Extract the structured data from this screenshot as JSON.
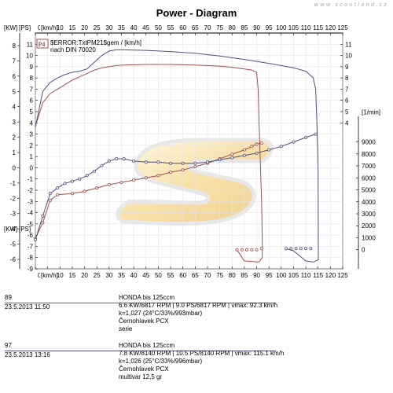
{
  "title": "Power - Diagram",
  "watermark": "www.scootland.cz",
  "logo_text": "S",
  "chart_data": {
    "type": "line",
    "xlabel": "[km/h]",
    "y_left_outer_label": "[KW]",
    "y_left_inner_label": "[PS]",
    "y_right_label": "[1/min]",
    "xlim": [
      0,
      125
    ],
    "x_ticks": [
      0,
      5,
      10,
      15,
      20,
      25,
      30,
      35,
      40,
      45,
      50,
      55,
      60,
      65,
      70,
      75,
      80,
      85,
      90,
      95,
      100,
      105,
      110,
      115,
      120,
      125
    ],
    "kw_ticks": [
      8,
      7,
      6,
      5,
      4,
      3,
      2,
      1,
      0,
      -1,
      -2,
      -3,
      -4,
      -5,
      -6
    ],
    "ps_ticks": [
      11,
      10,
      9,
      8,
      7,
      6,
      5,
      4,
      3,
      2,
      1,
      0,
      -1,
      -2,
      -3,
      -4,
      -5,
      -6,
      -7,
      -8,
      -9
    ],
    "right_ps_ticks": [
      11,
      10,
      9,
      8,
      7,
      6,
      5,
      4
    ],
    "rpm_ticks": [
      9000,
      8000,
      7000,
      6000,
      5000,
      4000,
      3000,
      2000,
      1000,
      0
    ],
    "ylim_ps": [
      -9,
      12
    ],
    "rpm_range": [
      0,
      9570
    ],
    "legend_p4": "P4",
    "legend_line1": "$ERROR:TxtPM21$gem / [km/h]",
    "legend_line2": "nach DIN 70020",
    "series": [
      {
        "name": "89",
        "color": "#a0504e",
        "kind": "power",
        "points": [
          [
            0,
            3.7
          ],
          [
            3,
            5.8
          ],
          [
            6,
            6.6
          ],
          [
            9,
            7.0
          ],
          [
            12,
            7.4
          ],
          [
            15,
            7.8
          ],
          [
            18,
            8.1
          ],
          [
            21,
            8.4
          ],
          [
            24,
            8.7
          ],
          [
            27,
            8.9
          ],
          [
            30,
            9.0
          ],
          [
            33,
            9.1
          ],
          [
            36,
            9.15
          ],
          [
            45,
            9.2
          ],
          [
            55,
            9.2
          ],
          [
            65,
            9.15
          ],
          [
            75,
            9.05
          ],
          [
            80,
            8.95
          ],
          [
            85,
            8.8
          ],
          [
            88,
            8.7
          ],
          [
            90,
            8.5
          ],
          [
            90.6,
            7.0
          ],
          [
            91,
            4.0
          ],
          [
            91.5,
            0.5
          ],
          [
            92,
            -3.0
          ],
          [
            92.3,
            -6.5
          ],
          [
            92.3,
            -8.0
          ],
          [
            91,
            -8.4
          ],
          [
            85,
            -8.3
          ],
          [
            82,
            -7.3
          ]
        ]
      },
      {
        "name": "97",
        "color": "#50507e",
        "kind": "power",
        "points": [
          [
            0,
            3.6
          ],
          [
            3,
            6.8
          ],
          [
            6,
            7.6
          ],
          [
            9,
            8.0
          ],
          [
            12,
            8.3
          ],
          [
            15,
            8.5
          ],
          [
            18,
            8.6
          ],
          [
            21,
            8.8
          ],
          [
            24,
            9.4
          ],
          [
            27,
            10.0
          ],
          [
            30,
            10.4
          ],
          [
            33,
            10.5
          ],
          [
            36,
            10.5
          ],
          [
            45,
            10.45
          ],
          [
            55,
            10.35
          ],
          [
            65,
            10.2
          ],
          [
            75,
            9.95
          ],
          [
            85,
            9.65
          ],
          [
            95,
            9.3
          ],
          [
            105,
            8.9
          ],
          [
            110,
            8.6
          ],
          [
            113,
            8.0
          ],
          [
            114,
            7.0
          ],
          [
            114.5,
            4.0
          ],
          [
            115,
            0
          ],
          [
            115.1,
            -8.2
          ],
          [
            113,
            -8.4
          ],
          [
            110,
            -8.3
          ],
          [
            105,
            -7.4
          ],
          [
            102,
            -7.2
          ]
        ]
      },
      {
        "name": "89 rpm",
        "color": "#a0504e",
        "kind": "rpm",
        "points": [
          [
            0,
            -6.3
          ],
          [
            3,
            -4.9
          ],
          [
            6,
            -2.9
          ],
          [
            9,
            -2.4
          ],
          [
            15,
            -2.3
          ],
          [
            20,
            -2.1
          ],
          [
            25,
            -1.8
          ],
          [
            30,
            -1.5
          ],
          [
            35,
            -1.3
          ],
          [
            40,
            -1.1
          ],
          [
            45,
            -0.9
          ],
          [
            50,
            -0.7
          ],
          [
            55,
            -0.4
          ],
          [
            60,
            -0.2
          ],
          [
            65,
            0.1
          ],
          [
            70,
            0.4
          ],
          [
            75,
            0.8
          ],
          [
            80,
            1.2
          ],
          [
            85,
            1.6
          ],
          [
            88,
            1.9
          ],
          [
            90,
            2.1
          ],
          [
            92,
            2.2
          ]
        ]
      },
      {
        "name": "97 rpm",
        "color": "#50507e",
        "kind": "rpm",
        "points": [
          [
            0,
            -6.4
          ],
          [
            3,
            -4.3
          ],
          [
            6,
            -2.3
          ],
          [
            9,
            -1.8
          ],
          [
            12,
            -1.4
          ],
          [
            15,
            -1.2
          ],
          [
            18,
            -1.0
          ],
          [
            21,
            -0.7
          ],
          [
            24,
            -0.3
          ],
          [
            27,
            0.2
          ],
          [
            30,
            0.6
          ],
          [
            33,
            0.8
          ],
          [
            36,
            0.8
          ],
          [
            40,
            0.6
          ],
          [
            45,
            0.5
          ],
          [
            50,
            0.5
          ],
          [
            55,
            0.4
          ],
          [
            60,
            0.4
          ],
          [
            65,
            0.4
          ],
          [
            70,
            0.5
          ],
          [
            75,
            0.7
          ],
          [
            80,
            0.9
          ],
          [
            85,
            1.1
          ],
          [
            90,
            1.3
          ],
          [
            95,
            1.6
          ],
          [
            100,
            1.9
          ],
          [
            105,
            2.3
          ],
          [
            110,
            2.7
          ],
          [
            114,
            3.0
          ]
        ]
      }
    ]
  },
  "records": [
    {
      "id": "89",
      "date": "23.5.2013   11:50",
      "color": "#a0504e",
      "lines": [
        "HONDA bis      125ccm",
        "6.6 KW/6817 RPM  |  9.0 PS/6817 RPM  |  vmax: 92.3 km/h",
        "k=1,027 (24°C/33%/993mbar)",
        "Černohlavek PCX",
        "serie"
      ]
    },
    {
      "id": "97",
      "date": "23.5.2013   13:16",
      "color": "#50507e",
      "lines": [
        "HONDA bis      125ccm",
        "7.8 KW/8140 RPM  |  10.5 PS/8140 RPM  |  vmax: 115.1 km/h",
        "k=1,026 (25°C/33%/996mbar)",
        "Černohlavek PCX",
        "multivar 12,5 gr"
      ]
    }
  ]
}
